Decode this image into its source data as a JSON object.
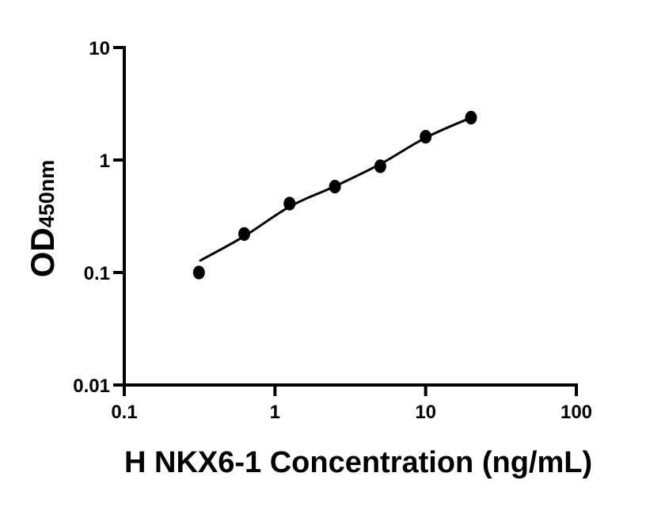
{
  "chart_data": {
    "type": "scatter",
    "title": "",
    "xlabel": "H NKX6-1 Concentration (ng/mL)",
    "ylabel": "OD",
    "ylabel_subscript": "450nm",
    "xscale": "log",
    "yscale": "log",
    "xlim": [
      0.1,
      100
    ],
    "ylim": [
      0.01,
      10
    ],
    "x_ticks": [
      "0.1",
      "1",
      "10",
      "100"
    ],
    "y_ticks": [
      "0.01",
      "0.1",
      "1",
      "10"
    ],
    "grid": false,
    "legend": null,
    "points": {
      "x": [
        0.313,
        0.625,
        1.25,
        2.5,
        5,
        10,
        20
      ],
      "y": [
        0.1,
        0.22,
        0.41,
        0.58,
        0.88,
        1.61,
        2.38
      ]
    },
    "fit_curve": [
      {
        "x": 0.32,
        "y": 0.128
      },
      {
        "x": 0.625,
        "y": 0.21
      },
      {
        "x": 1.25,
        "y": 0.385
      },
      {
        "x": 2.5,
        "y": 0.585
      },
      {
        "x": 5,
        "y": 0.92
      },
      {
        "x": 10,
        "y": 1.58
      },
      {
        "x": 20,
        "y": 2.38
      }
    ],
    "colors": {
      "marker": "#000000",
      "line": "#000000",
      "axis": "#000000",
      "background": "#ffffff"
    }
  }
}
